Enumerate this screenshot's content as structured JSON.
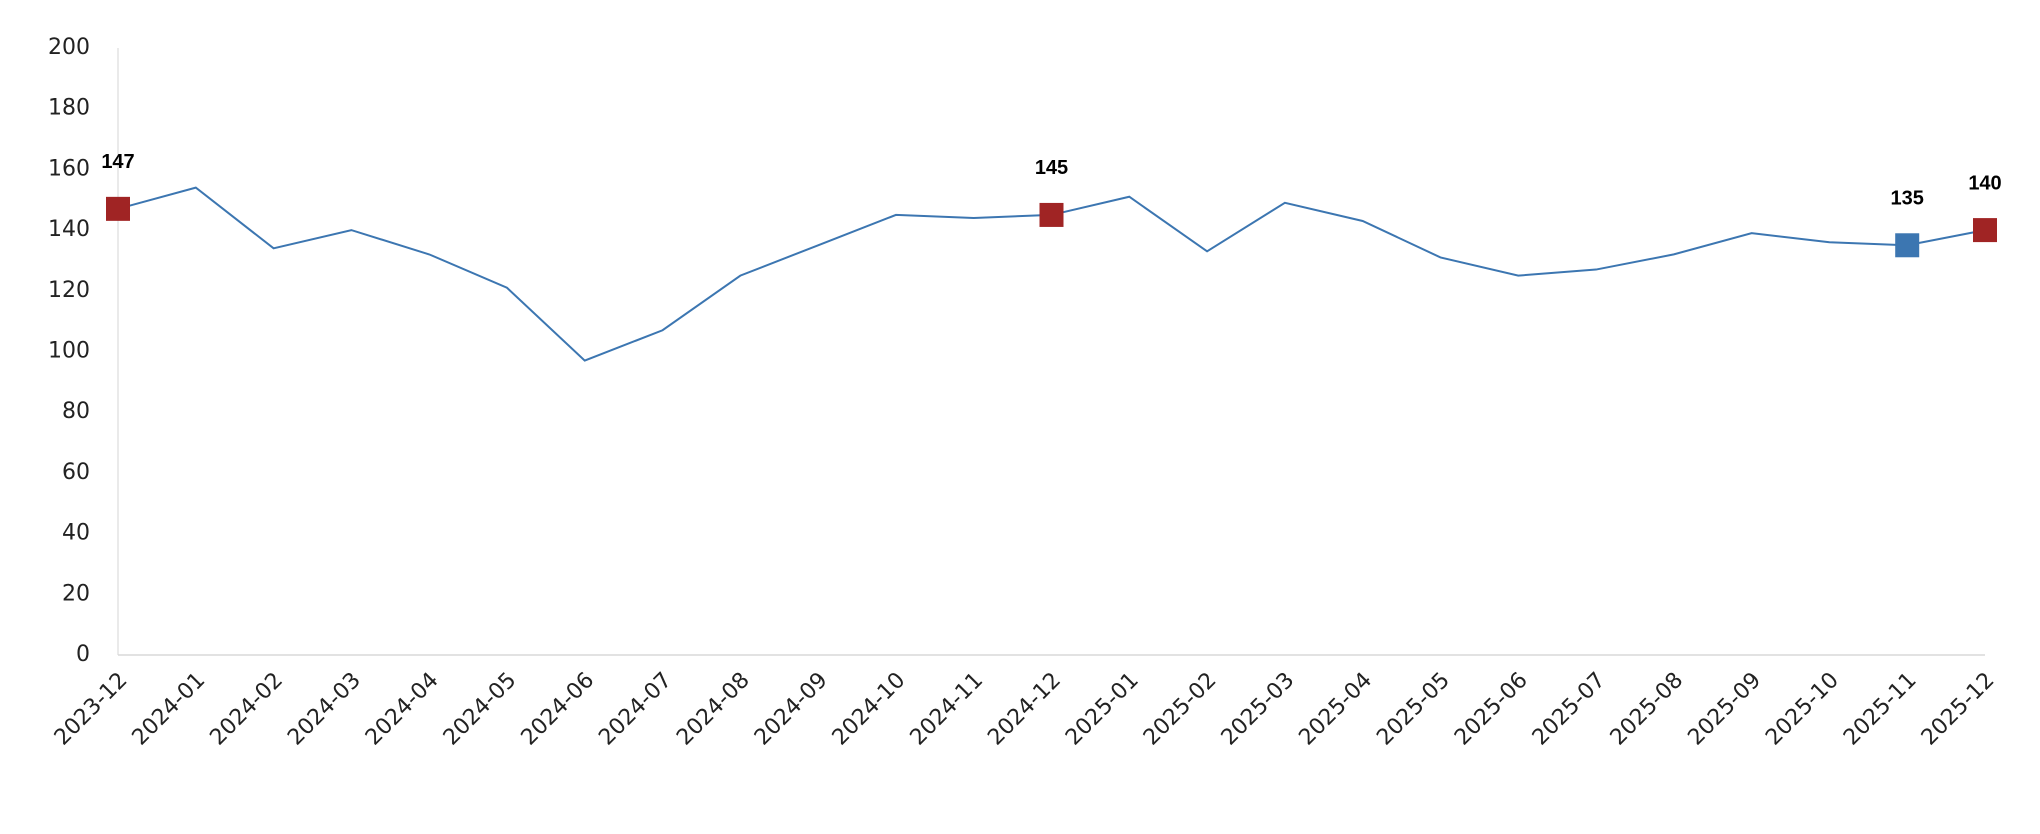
{
  "chart_data": {
    "type": "line",
    "categories": [
      "2023-12",
      "2024-01",
      "2024-02",
      "2024-03",
      "2024-04",
      "2024-05",
      "2024-06",
      "2024-07",
      "2024-08",
      "2024-09",
      "2024-10",
      "2024-11",
      "2024-12",
      "2025-01",
      "2025-02",
      "2025-03",
      "2025-04",
      "2025-05",
      "2025-06",
      "2025-07",
      "2025-08",
      "2025-09",
      "2025-10",
      "2025-11",
      "2025-12"
    ],
    "values": [
      147,
      154,
      134,
      140,
      132,
      121,
      97,
      107,
      125,
      135,
      145,
      144,
      145,
      151,
      133,
      149,
      143,
      131,
      125,
      127,
      132,
      139,
      136,
      135,
      140
    ],
    "color": "#3c76b1",
    "marker_colors": [
      "#a02424",
      null,
      null,
      null,
      null,
      null,
      null,
      null,
      null,
      null,
      null,
      null,
      "#a02424",
      null,
      null,
      null,
      null,
      null,
      null,
      null,
      null,
      null,
      null,
      "#3c76b1",
      "#a02424"
    ],
    "ylim": [
      0,
      200
    ],
    "yticks": [
      0,
      20,
      40,
      60,
      80,
      100,
      120,
      140,
      160,
      180,
      200
    ],
    "grid": false
  }
}
